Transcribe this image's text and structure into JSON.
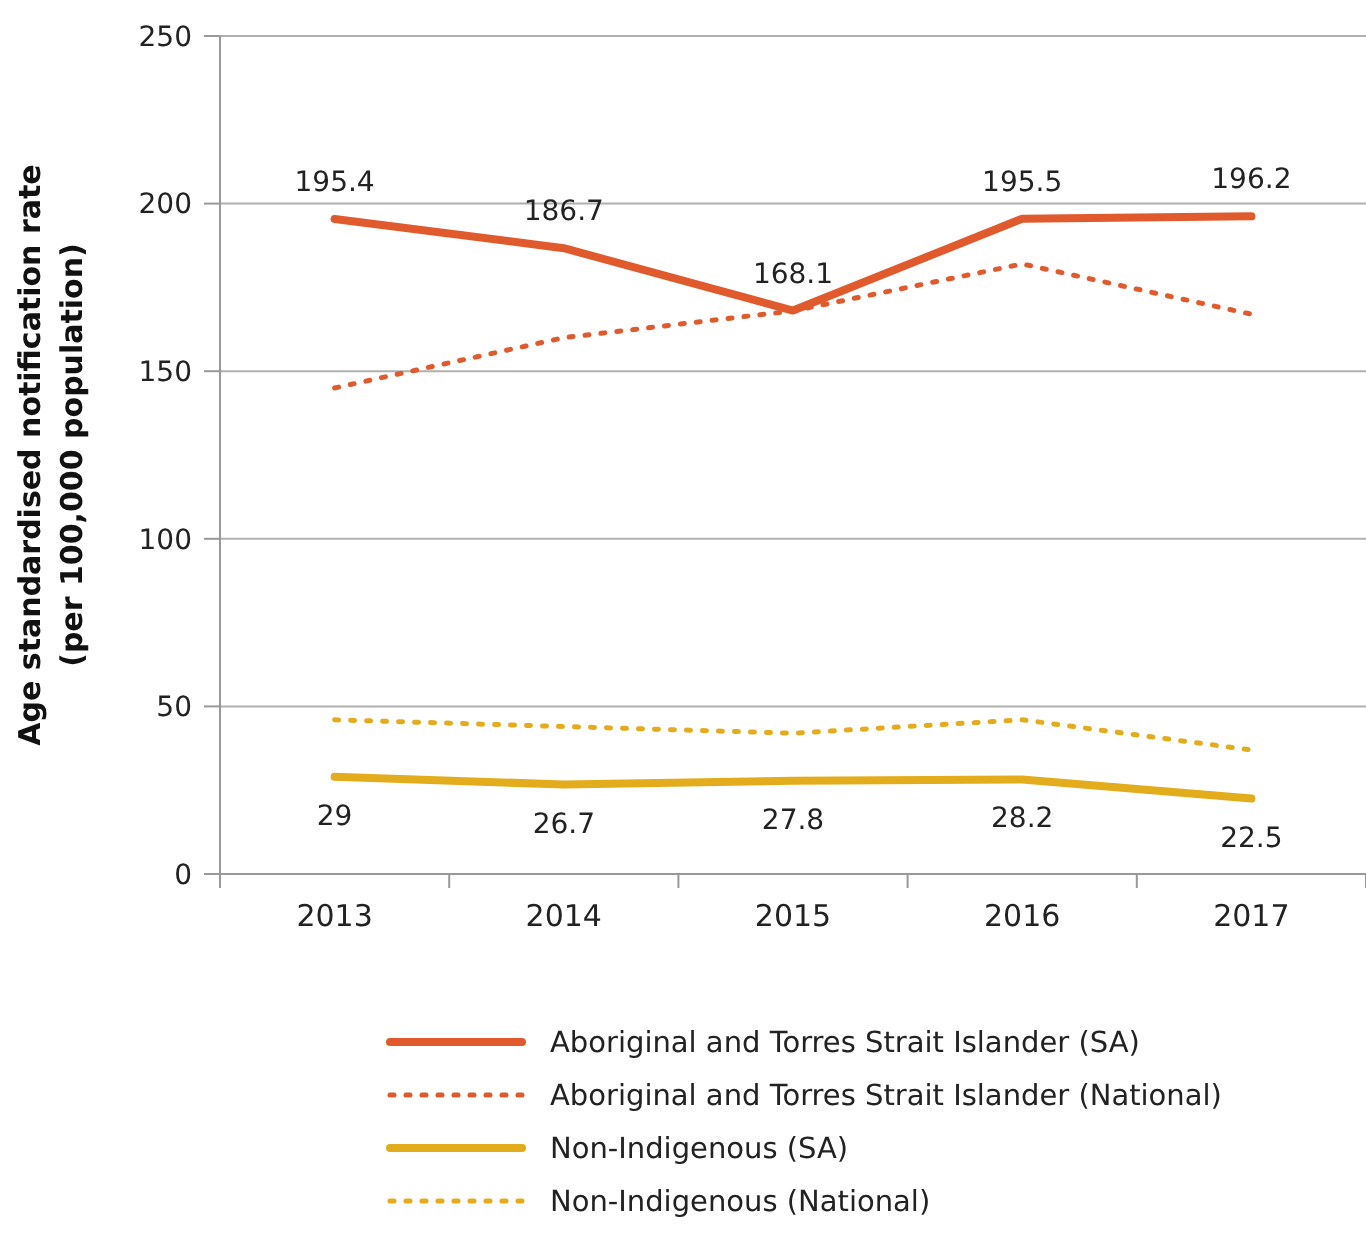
{
  "chart_data": {
    "type": "line",
    "ylabel": "Age standardised notification rate\n(per 100,000 population)",
    "categories": [
      "2013",
      "2014",
      "2015",
      "2016",
      "2017"
    ],
    "ylim": [
      0,
      250
    ],
    "yticks": [
      0,
      50,
      100,
      150,
      200,
      250
    ],
    "grid": "y",
    "legend": "bottom",
    "series": [
      {
        "name": "Aboriginal and Torres Strait Islander (SA)",
        "color": "#e05a2e",
        "line_style": "solid",
        "values": [
          195.4,
          186.7,
          168.1,
          195.5,
          196.2
        ],
        "value_labels": [
          "195.4",
          "186.7",
          "168.1",
          "195.5",
          "196.2"
        ]
      },
      {
        "name": "Aboriginal and Torres Strait Islander (National)",
        "color": "#e05a2e",
        "line_style": "dotted",
        "values": [
          145,
          160,
          168,
          182,
          167
        ]
      },
      {
        "name": "Non-Indigenous (SA)",
        "color": "#e3ac1c",
        "line_style": "solid",
        "values": [
          29,
          26.7,
          27.8,
          28.2,
          22.5
        ],
        "value_labels": [
          "29",
          "26.7",
          "27.8",
          "28.2",
          "22.5"
        ]
      },
      {
        "name": "Non-Indigenous (National)",
        "color": "#e3ac1c",
        "line_style": "dotted",
        "values": [
          46,
          44,
          42,
          46,
          37
        ]
      }
    ]
  }
}
